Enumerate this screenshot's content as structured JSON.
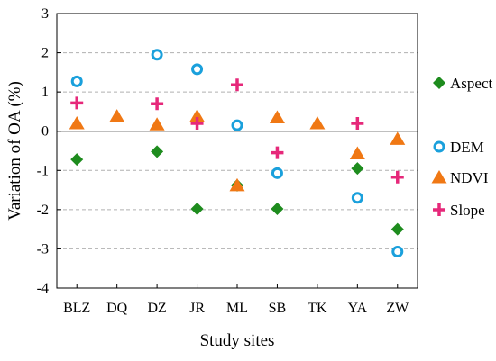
{
  "chart_data": {
    "type": "scatter",
    "xlabel": "Study sites",
    "ylabel": "Variation of OA (%)",
    "categories": [
      "BLZ",
      "DQ",
      "DZ",
      "JR",
      "ML",
      "SB",
      "TK",
      "YA",
      "ZW"
    ],
    "ylim": [
      -4,
      3
    ],
    "yticks": [
      -4,
      -3,
      -2,
      -1,
      0,
      1,
      2,
      3
    ],
    "grid": "horizontal dashed",
    "zero_line": true,
    "legend_position": "right",
    "series": [
      {
        "name": "Aspect",
        "marker": "diamond",
        "color": "#1e8c1e",
        "values": [
          -0.72,
          null,
          -0.52,
          -1.98,
          -1.38,
          -1.98,
          null,
          -0.95,
          -2.5
        ]
      },
      {
        "name": "DEM",
        "marker": "ring",
        "color": "#1aa0dc",
        "values": [
          1.27,
          null,
          1.95,
          1.58,
          0.15,
          -1.07,
          null,
          -1.7,
          -3.07
        ]
      },
      {
        "name": "NDVI",
        "marker": "triangle",
        "color": "#f07814",
        "values": [
          0.2,
          0.38,
          0.17,
          0.38,
          -1.38,
          0.35,
          0.2,
          -0.57,
          -0.2
        ]
      },
      {
        "name": "Slope",
        "marker": "plus",
        "color": "#e6287a",
        "values": [
          0.72,
          null,
          0.7,
          0.2,
          1.18,
          -0.55,
          null,
          0.2,
          -1.17
        ]
      }
    ]
  }
}
